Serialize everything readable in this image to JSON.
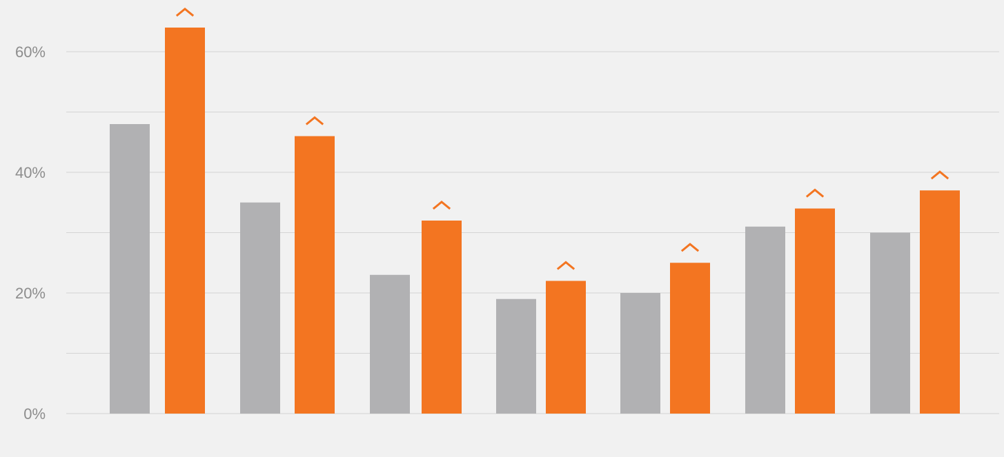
{
  "chart_data": {
    "type": "bar",
    "categories": [
      "",
      "",
      "",
      "",
      "",
      "",
      ""
    ],
    "series": [
      {
        "color": "#b1b1b3",
        "values": [
          48,
          35,
          23,
          19,
          20,
          31,
          30
        ]
      },
      {
        "color": "#f37521",
        "values": [
          64,
          46,
          32,
          22,
          25,
          34,
          37
        ]
      }
    ],
    "increase_markers": [
      true,
      true,
      true,
      true,
      true,
      true,
      true
    ],
    "ylim": [
      0,
      60
    ],
    "yticks": [
      "0%",
      "20%",
      "40%",
      "60%"
    ],
    "grid": true,
    "gridline_step": 10,
    "title": "",
    "xlabel": "",
    "ylabel": ""
  }
}
